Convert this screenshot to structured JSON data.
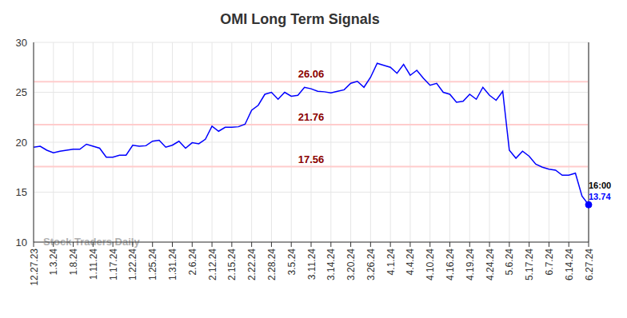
{
  "chart_data": {
    "type": "line",
    "title": "OMI Long Term Signals",
    "categories": [
      "12.27.23",
      null,
      null,
      "1.3.24",
      null,
      null,
      "1.8.24",
      null,
      null,
      "1.11.24",
      null,
      null,
      "1.17.24",
      null,
      null,
      "1.22.24",
      null,
      null,
      "1.25.24",
      null,
      null,
      "1.31.24",
      null,
      null,
      "2.6.24",
      null,
      null,
      "2.12.24",
      null,
      null,
      "2.15.24",
      null,
      null,
      "2.22.24",
      null,
      null,
      "2.28.24",
      null,
      null,
      "3.5.24",
      null,
      null,
      "3.11.24",
      null,
      null,
      "3.14.24",
      null,
      null,
      "3.20.24",
      null,
      null,
      "3.26.24",
      null,
      null,
      "4.1.24",
      null,
      null,
      "4.4.24",
      null,
      null,
      "4.10.24",
      null,
      null,
      "4.16.24",
      null,
      null,
      "4.19.24",
      null,
      null,
      "4.24.24",
      null,
      null,
      "5.6.24",
      null,
      null,
      "5.17.24",
      null,
      null,
      "6.7.24",
      null,
      null,
      "6.14.24",
      null,
      null,
      "6.27.24"
    ],
    "values": [
      19.5,
      19.6,
      19.2,
      18.95,
      19.1,
      19.2,
      19.3,
      19.3,
      19.8,
      19.6,
      19.4,
      18.5,
      18.5,
      18.7,
      18.7,
      19.7,
      19.6,
      19.65,
      20.1,
      20.2,
      19.5,
      19.7,
      20.1,
      19.4,
      19.95,
      19.85,
      20.3,
      21.6,
      21.1,
      21.5,
      21.5,
      21.55,
      21.8,
      23.2,
      23.7,
      24.8,
      25.0,
      24.3,
      25.0,
      24.6,
      24.7,
      25.5,
      25.35,
      25.1,
      25.05,
      24.95,
      25.1,
      25.25,
      25.9,
      26.1,
      25.5,
      26.5,
      27.9,
      27.7,
      27.5,
      26.9,
      27.8,
      26.7,
      27.2,
      26.4,
      25.7,
      25.9,
      25.0,
      24.8,
      24.0,
      24.1,
      24.8,
      24.3,
      25.5,
      24.7,
      24.2,
      25.1,
      19.2,
      18.4,
      19.1,
      18.6,
      17.8,
      17.5,
      17.3,
      17.2,
      16.7,
      16.7,
      16.9,
      14.6,
      13.74
    ],
    "color": "#0000ff",
    "ylim": [
      10,
      30
    ],
    "yticks": [
      10,
      15,
      20,
      25,
      30
    ],
    "grid": true,
    "reference_lines": [
      {
        "value": 26.06,
        "color": "#ffcccc"
      },
      {
        "value": 21.76,
        "color": "#ffcccc"
      },
      {
        "value": 17.56,
        "color": "#ffcccc"
      }
    ],
    "end_label": {
      "time": "16:00",
      "value_label": "13.74"
    },
    "watermark": "Stock Traders Daily"
  }
}
